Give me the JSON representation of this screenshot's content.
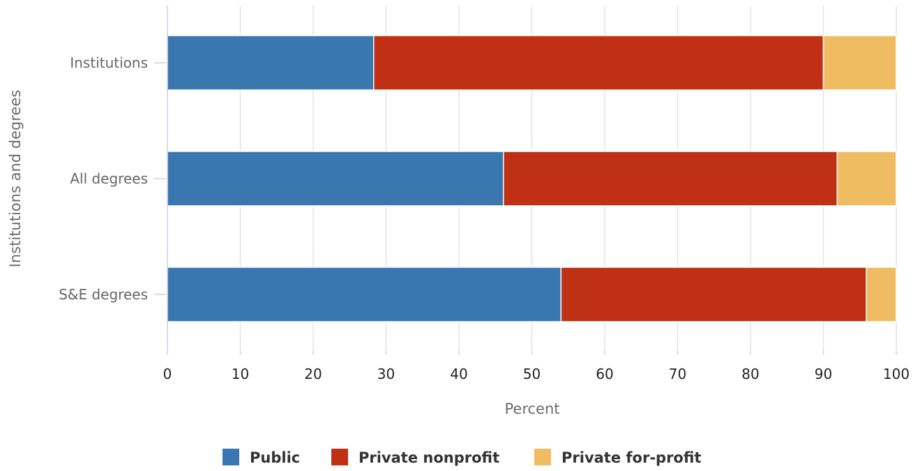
{
  "chart_data": {
    "type": "bar",
    "orientation": "horizontal",
    "stacked": true,
    "categories": [
      "Institutions",
      "All degrees",
      "S&E degrees"
    ],
    "series": [
      {
        "name": "Public",
        "color": "#3a77b0",
        "values": [
          28.3,
          46.1,
          54.0
        ]
      },
      {
        "name": "Private nonprofit",
        "color": "#bf3014",
        "values": [
          61.7,
          45.8,
          41.9
        ]
      },
      {
        "name": "Private for-profit",
        "color": "#f0bc62",
        "values": [
          10.0,
          8.1,
          4.1
        ]
      }
    ],
    "xlabel": "Percent",
    "ylabel": "Institutions and degrees",
    "xlim": [
      0,
      100
    ],
    "xticks": [
      "0",
      "10",
      "20",
      "30",
      "40",
      "50",
      "60",
      "70",
      "80",
      "90",
      "100"
    ],
    "grid": true,
    "legend_position": "bottom-center"
  }
}
